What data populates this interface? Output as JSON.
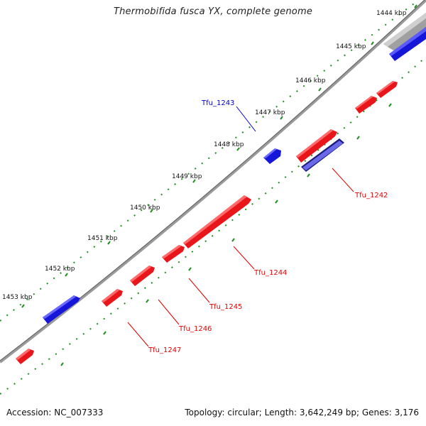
{
  "title": "Thermobifida fusca YX, complete genome",
  "footer": {
    "accession": "Accession: NC_007333",
    "summary": "Topology: circular; Length: 3,642,249 bp; Genes: 3,176"
  },
  "colors": {
    "forward": "#e8161a",
    "reverse": "#1616e0",
    "backbone": "#8a8a8a",
    "tick": "#1f8f1f",
    "label_red": "#e00000",
    "label_blue": "#0000c8"
  },
  "ticks": [
    "1444 kbp",
    "1445 kbp",
    "1446 kbp",
    "1447 kbp",
    "1448 kbp",
    "1449 kbp",
    "1450 kbp",
    "1451 kbp",
    "1452 kbp",
    "1453 kbp"
  ],
  "gene_labels": [
    {
      "id": "tfu1242",
      "text": "Tfu_1242",
      "color": "red"
    },
    {
      "id": "tfu1243",
      "text": "Tfu_1243",
      "color": "blue"
    },
    {
      "id": "tfu1244",
      "text": "Tfu_1244",
      "color": "red"
    },
    {
      "id": "tfu1245",
      "text": "Tfu_1245",
      "color": "red"
    },
    {
      "id": "tfu1246",
      "text": "Tfu_1246",
      "color": "red"
    },
    {
      "id": "tfu1247",
      "text": "Tfu_1247",
      "color": "red"
    }
  ]
}
